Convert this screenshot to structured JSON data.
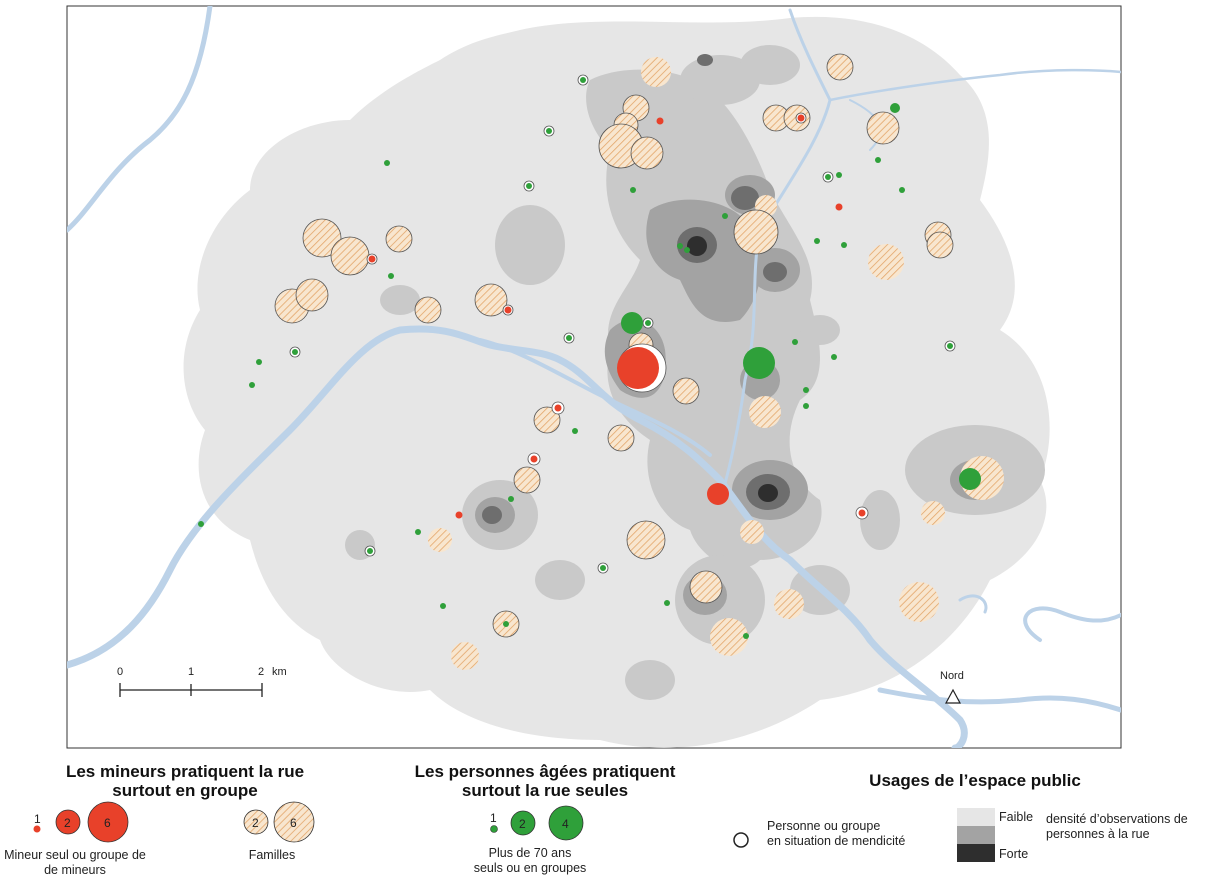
{
  "scale": {
    "ticks": [
      "0",
      "1",
      "2"
    ],
    "unit": "km"
  },
  "north_label": "Nord",
  "legend_minors": {
    "title_line1": "Les mineurs pratiquent la rue",
    "title_line2": "surtout en groupe",
    "sizes": [
      "1",
      "2",
      "6"
    ],
    "caption_line1": "Mineur seul ou groupe de",
    "caption_line2": "de mineurs",
    "families_sizes": [
      "2",
      "6"
    ],
    "families_caption": "Familles"
  },
  "legend_elderly": {
    "title_line1": "Les personnes âgées pratiquent",
    "title_line2": "surtout la rue seules",
    "sizes": [
      "1",
      "2",
      "4"
    ],
    "caption_line1": "Plus de 70 ans",
    "caption_line2": "seuls ou en groupes"
  },
  "legend_usages": {
    "title": "Usages de l’espace public",
    "begging_line1": "Personne ou groupe",
    "begging_line2": "en situation de mendicité",
    "density_low": "Faible",
    "density_high": "Forte",
    "density_line1": "densité d’observations de",
    "density_line2": "personnes à la rue"
  },
  "colors": {
    "minor": "#e8412a",
    "elderly": "#2fa03a",
    "family_fill": "#f8e6cf",
    "family_hatch": "#e3a66a",
    "river": "#bcd2e8",
    "density_low": "#e6e6e6",
    "density_mid": "#b5b5b5",
    "density_high": "#2e2e2e"
  }
}
